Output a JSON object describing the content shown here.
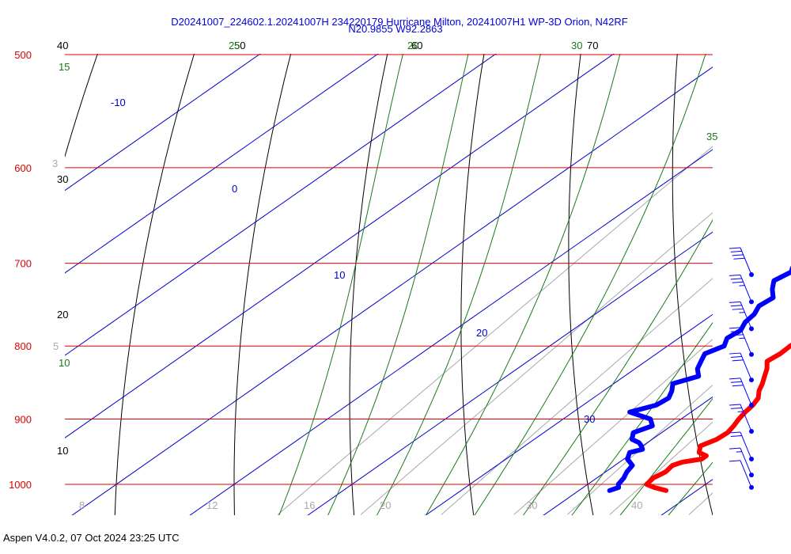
{
  "header": {
    "title_line1": "D20241007_224602.1.20241007H 234220179 Hurricane Milton, 20241007H1 WP-3D Orion, N42RF",
    "title_line2": "N20.9855 W92.2863"
  },
  "footer": {
    "text": "Aspen V4.0.2, 07 Oct 2024  23:25 UTC"
  },
  "colors": {
    "isobar": "#dd0000",
    "temperature": "#ff0000",
    "dewpoint": "#0000ff",
    "mixing_ratio": "#a8a8a8",
    "dry_adiabat": "#000000",
    "moist_adiabat": "#1a7a1a",
    "isotherm": "#0000cc",
    "wind": "#0000ff"
  },
  "chart_data": {
    "type": "line",
    "chart_kind": "skew-T log-P sounding",
    "y_axis": {
      "quantity": "pressure (hPa)",
      "scale": "log",
      "range": [
        1000,
        500
      ],
      "ticks": [
        "500",
        "600",
        "700",
        "800",
        "900",
        "1000"
      ]
    },
    "x_axis": {
      "quantity": "temperature (°C, skewed)",
      "range": [
        -20,
        40
      ]
    },
    "isotherm_labels": [
      "-10",
      "0",
      "10",
      "20",
      "30"
    ],
    "mixing_ratio_labels": [
      "3",
      "5",
      "8",
      "12",
      "16",
      "20",
      "30",
      "40"
    ],
    "dry_adiabat_labels": [
      "40",
      "30",
      "20",
      "10",
      "50",
      "60",
      "70"
    ],
    "moist_adiabat_labels": [
      "15",
      "10",
      "20",
      "25",
      "30",
      "35"
    ],
    "series": [
      {
        "key": "temperature",
        "p": [
          1010,
          1005,
          1000,
          990,
          980,
          970,
          965,
          960,
          955,
          950,
          940,
          930,
          920,
          910,
          900,
          890,
          880,
          870,
          860,
          850,
          840,
          830,
          820,
          810,
          800,
          790,
          780,
          770,
          760,
          750,
          740,
          730,
          720,
          710,
          705
        ],
        "t": [
          27.4,
          26.0,
          25.0,
          24.8,
          25.1,
          24.9,
          25.3,
          26.6,
          26.6,
          25.6,
          24.9,
          25.5,
          25.6,
          25.3,
          24.9,
          24.6,
          24.4,
          24.0,
          23.2,
          22.6,
          21.9,
          21.2,
          20.3,
          20.5,
          20.4,
          20.7,
          20.8,
          20.4,
          19.7,
          19.6,
          18.8,
          17.8,
          17.7,
          17.7,
          17.2
        ]
      },
      {
        "key": "dewpoint",
        "p": [
          1010,
          1005,
          1000,
          990,
          980,
          970,
          960,
          950,
          945,
          940,
          935,
          930,
          920,
          910,
          900,
          890,
          880,
          870,
          860,
          850,
          840,
          830,
          820,
          810,
          800,
          790,
          780,
          770,
          760,
          750,
          740,
          730,
          720,
          710,
          705
        ],
        "t": [
          22.6,
          23.0,
          22.6,
          22.3,
          21.8,
          21.5,
          20.3,
          19.7,
          20.4,
          19.9,
          19.3,
          18.3,
          17.6,
          18.4,
          17.4,
          14.8,
          16.2,
          16.4,
          15.8,
          15.0,
          16.3,
          15.3,
          14.7,
          14.1,
          14.8,
          14.1,
          14.3,
          13.7,
          13.5,
          12.9,
          13.1,
          12.0,
          11.1,
          11.5,
          11.1
        ]
      }
    ],
    "wind_barbs": [
      {
        "p": 713,
        "speed_kt": 40
      },
      {
        "p": 745,
        "speed_kt": 35
      },
      {
        "p": 778,
        "speed_kt": 35
      },
      {
        "p": 811,
        "speed_kt": 35
      },
      {
        "p": 845,
        "speed_kt": 30
      },
      {
        "p": 880,
        "speed_kt": 30
      },
      {
        "p": 918,
        "speed_kt": 25
      },
      {
        "p": 960,
        "speed_kt": 20
      },
      {
        "p": 985,
        "speed_kt": 15
      },
      {
        "p": 1005,
        "speed_kt": 10
      }
    ]
  }
}
